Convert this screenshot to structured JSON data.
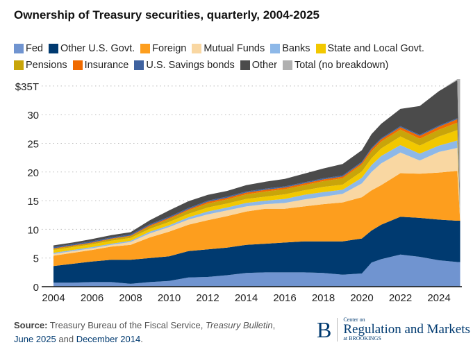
{
  "chart_data": {
    "type": "area",
    "stacked": true,
    "title": "Ownership of Treasury securities, quarterly, 2004-2025",
    "xlabel": "",
    "ylabel": "",
    "xlim": [
      2004,
      2025.3
    ],
    "ylim": [
      0,
      35
    ],
    "grid": true,
    "x_ticks": [
      "2004",
      "2006",
      "2008",
      "2010",
      "2012",
      "2014",
      "2016",
      "2018",
      "2020",
      "2022",
      "2024"
    ],
    "y_ticks": [
      "0",
      "5",
      "10",
      "15",
      "20",
      "25",
      "30",
      "$35T"
    ],
    "x": [
      2004,
      2005,
      2006,
      2007,
      2008,
      2009,
      2010,
      2011,
      2012,
      2013,
      2014,
      2015,
      2016,
      2017,
      2018,
      2019,
      2020,
      2020.5,
      2021,
      2022,
      2023,
      2024,
      2024.95,
      2025.1
    ],
    "series": [
      {
        "name": "Fed",
        "color": "#7094d0",
        "values": [
          0.7,
          0.7,
          0.8,
          0.8,
          0.5,
          0.8,
          1.0,
          1.6,
          1.7,
          2.0,
          2.4,
          2.5,
          2.5,
          2.5,
          2.4,
          2.1,
          2.3,
          4.2,
          4.8,
          5.6,
          5.2,
          4.6,
          4.3,
          4.3
        ]
      },
      {
        "name": "Other U.S. Govt.",
        "color": "#003a70",
        "values": [
          2.9,
          3.3,
          3.6,
          3.9,
          4.2,
          4.2,
          4.3,
          4.6,
          4.8,
          4.8,
          4.9,
          5.0,
          5.2,
          5.4,
          5.5,
          5.8,
          6.1,
          5.6,
          6.0,
          6.6,
          6.8,
          7.1,
          7.2,
          7.2
        ]
      },
      {
        "name": "Foreign",
        "color": "#fd9e1e",
        "values": [
          1.8,
          1.9,
          2.0,
          2.3,
          2.6,
          3.6,
          4.3,
          4.6,
          5.1,
          5.5,
          5.8,
          6.1,
          5.9,
          6.1,
          6.5,
          6.8,
          7.2,
          7.0,
          6.9,
          7.6,
          7.7,
          8.2,
          8.7,
          0
        ]
      },
      {
        "name": "Mutual Funds",
        "color": "#f9d7a2",
        "values": [
          0.3,
          0.3,
          0.3,
          0.3,
          0.5,
          0.7,
          0.8,
          0.9,
          1.0,
          1.0,
          0.9,
          0.8,
          1.0,
          1.2,
          1.3,
          1.5,
          2.4,
          3.2,
          3.8,
          3.6,
          2.3,
          3.6,
          4.0,
          0
        ]
      },
      {
        "name": "Banks",
        "color": "#8db8e8",
        "values": [
          0.2,
          0.2,
          0.2,
          0.2,
          0.2,
          0.3,
          0.3,
          0.4,
          0.5,
          0.5,
          0.6,
          0.6,
          0.7,
          0.8,
          0.8,
          0.7,
          1.0,
          1.2,
          1.3,
          1.3,
          1.2,
          1.1,
          1.3,
          0
        ]
      },
      {
        "name": "State and Local Govt.",
        "color": "#f2c800",
        "values": [
          0.5,
          0.5,
          0.5,
          0.5,
          0.5,
          0.5,
          0.6,
          0.6,
          0.7,
          0.7,
          0.7,
          0.7,
          0.8,
          0.8,
          0.9,
          0.9,
          1.1,
          1.2,
          1.3,
          1.5,
          1.4,
          1.6,
          1.8,
          0
        ]
      },
      {
        "name": "Pensions",
        "color": "#c8a50a",
        "values": [
          0.2,
          0.2,
          0.2,
          0.3,
          0.3,
          0.4,
          0.5,
          0.6,
          0.7,
          0.7,
          0.8,
          0.9,
          0.9,
          0.9,
          1.0,
          1.1,
          1.2,
          1.2,
          1.2,
          1.2,
          1.2,
          1.2,
          1.3,
          0
        ]
      },
      {
        "name": "Insurance",
        "color": "#f06a00",
        "values": [
          0.1,
          0.1,
          0.1,
          0.1,
          0.1,
          0.2,
          0.2,
          0.2,
          0.3,
          0.3,
          0.3,
          0.3,
          0.3,
          0.3,
          0.3,
          0.3,
          0.3,
          0.4,
          0.4,
          0.4,
          0.5,
          0.5,
          0.6,
          0
        ]
      },
      {
        "name": "U.S. Savings bonds",
        "color": "#3f62a0",
        "values": [
          0.2,
          0.2,
          0.2,
          0.2,
          0.2,
          0.2,
          0.2,
          0.2,
          0.2,
          0.2,
          0.2,
          0.2,
          0.2,
          0.2,
          0.2,
          0.2,
          0.2,
          0.2,
          0.2,
          0.2,
          0.2,
          0.2,
          0.2,
          0
        ]
      },
      {
        "name": "Other",
        "color": "#4b4b4b",
        "values": [
          0.3,
          0.3,
          0.4,
          0.4,
          0.4,
          0.7,
          1.1,
          1.2,
          1.0,
          1.0,
          1.1,
          1.2,
          1.3,
          1.5,
          1.7,
          2.0,
          2.0,
          2.4,
          2.5,
          3.0,
          5.0,
          6.0,
          6.6,
          0
        ]
      },
      {
        "name": "Total (no breakdown)",
        "color": "#b0b0b0",
        "values": [
          0,
          0,
          0,
          0,
          0,
          0,
          0,
          0,
          0,
          0,
          0,
          0,
          0,
          0,
          0,
          0,
          0,
          0,
          0,
          0,
          0,
          0,
          0.2,
          24.7
        ]
      }
    ]
  },
  "source": {
    "label": "Source:",
    "text1": "Treasury Bureau of the Fiscal Service,",
    "italic": "Treasury Bulletin",
    "comma": ",",
    "link1": "June 2025",
    "and": "and",
    "link2": "December 2014",
    "period": "."
  },
  "logo": {
    "letter": "B",
    "small": "Center on",
    "main": "Regulation and Markets",
    "sub": "at BROOKINGS"
  }
}
